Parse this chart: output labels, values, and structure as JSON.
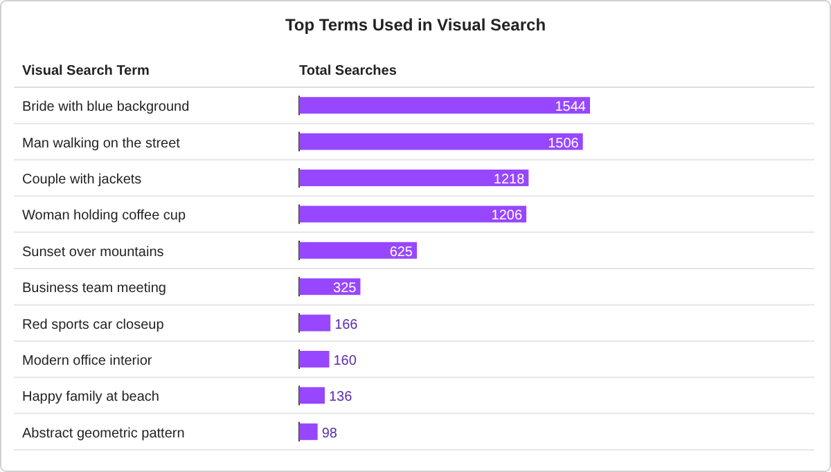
{
  "chart_data": {
    "type": "bar",
    "orientation": "horizontal",
    "title": "Top Terms Used in Visual Search",
    "ylabel": "Visual Search Term",
    "xlabel": "Total Searches",
    "categories": [
      "Bride with blue background",
      "Man walking on the street",
      "Couple with jackets",
      "Woman holding coffee cup",
      "Sunset over mountains",
      "Business team meeting",
      "Red sports car closeup",
      "Modern office interior",
      "Happy family at beach",
      "Abstract geometric pattern"
    ],
    "values": [
      1544,
      1506,
      1218,
      1206,
      625,
      325,
      166,
      160,
      136,
      98
    ],
    "color": "#9747ff",
    "data_labels": true
  }
}
